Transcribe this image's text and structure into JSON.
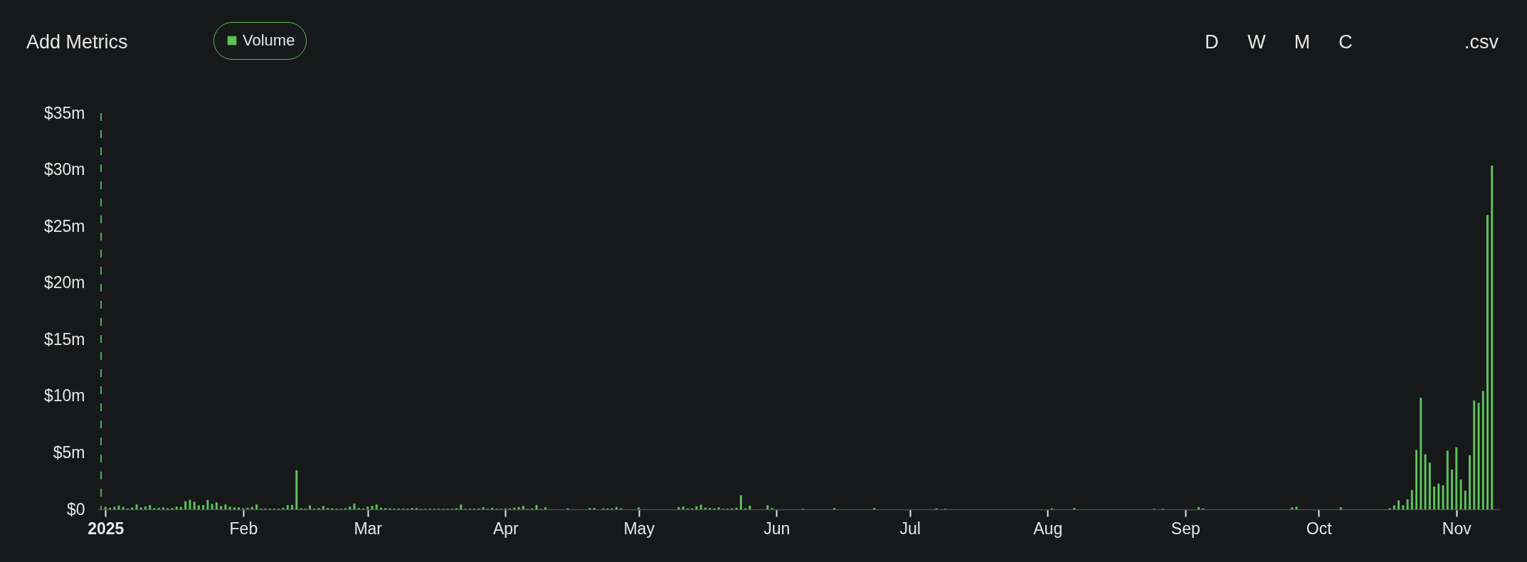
{
  "chart_data": {
    "type": "bar",
    "x": [
      "2025-01-01",
      "2025-01-02",
      "2025-01-03",
      "2025-01-04",
      "2025-01-05",
      "2025-01-06",
      "2025-01-07",
      "2025-01-08",
      "2025-01-09",
      "2025-01-10",
      "2025-01-11",
      "2025-01-12",
      "2025-01-13",
      "2025-01-14",
      "2025-01-15",
      "2025-01-16",
      "2025-01-17",
      "2025-01-18",
      "2025-01-19",
      "2025-01-20",
      "2025-01-21",
      "2025-01-22",
      "2025-01-23",
      "2025-01-24",
      "2025-01-25",
      "2025-01-26",
      "2025-01-27",
      "2025-01-28",
      "2025-01-29",
      "2025-01-30",
      "2025-01-31",
      "2025-02-01",
      "2025-02-02",
      "2025-02-03",
      "2025-02-04",
      "2025-02-05",
      "2025-02-06",
      "2025-02-07",
      "2025-02-08",
      "2025-02-09",
      "2025-02-10",
      "2025-02-11",
      "2025-02-12",
      "2025-02-13",
      "2025-02-14",
      "2025-02-15",
      "2025-02-16",
      "2025-02-17",
      "2025-02-18",
      "2025-02-19",
      "2025-02-20",
      "2025-02-21",
      "2025-02-22",
      "2025-02-23",
      "2025-02-24",
      "2025-02-25",
      "2025-02-26",
      "2025-02-27",
      "2025-02-28",
      "2025-03-01",
      "2025-03-02",
      "2025-03-03",
      "2025-03-04",
      "2025-03-05",
      "2025-03-06",
      "2025-03-07",
      "2025-03-08",
      "2025-03-09",
      "2025-03-10",
      "2025-03-11",
      "2025-03-12",
      "2025-03-13",
      "2025-03-14",
      "2025-03-15",
      "2025-03-16",
      "2025-03-17",
      "2025-03-18",
      "2025-03-19",
      "2025-03-20",
      "2025-03-21",
      "2025-03-22",
      "2025-03-23",
      "2025-03-24",
      "2025-03-25",
      "2025-03-26",
      "2025-03-27",
      "2025-03-28",
      "2025-03-29",
      "2025-03-30",
      "2025-03-31",
      "2025-04-01",
      "2025-04-02",
      "2025-04-03",
      "2025-04-04",
      "2025-04-05",
      "2025-04-06",
      "2025-04-07",
      "2025-04-08",
      "2025-04-09",
      "2025-04-10",
      "2025-04-15",
      "2025-04-20",
      "2025-04-21",
      "2025-04-23",
      "2025-04-24",
      "2025-04-25",
      "2025-04-26",
      "2025-04-27",
      "2025-05-01",
      "2025-05-10",
      "2025-05-11",
      "2025-05-12",
      "2025-05-13",
      "2025-05-14",
      "2025-05-15",
      "2025-05-16",
      "2025-05-17",
      "2025-05-18",
      "2025-05-19",
      "2025-05-20",
      "2025-05-21",
      "2025-05-22",
      "2025-05-23",
      "2025-05-24",
      "2025-05-25",
      "2025-05-26",
      "2025-05-30",
      "2025-05-31",
      "2025-06-07",
      "2025-06-14",
      "2025-06-23",
      "2025-07-07",
      "2025-07-09",
      "2025-08-02",
      "2025-08-07",
      "2025-08-25",
      "2025-08-27",
      "2025-09-04",
      "2025-09-05",
      "2025-09-25",
      "2025-09-26",
      "2025-10-06",
      "2025-10-17",
      "2025-10-18",
      "2025-10-19",
      "2025-10-20",
      "2025-10-21",
      "2025-10-22",
      "2025-10-23",
      "2025-10-24",
      "2025-10-25",
      "2025-10-26",
      "2025-10-27",
      "2025-10-28",
      "2025-10-29",
      "2025-10-30",
      "2025-10-31",
      "2025-11-01",
      "2025-11-02",
      "2025-11-03",
      "2025-11-04",
      "2025-11-05",
      "2025-11-06",
      "2025-11-07",
      "2025-11-08",
      "2025-11-09"
    ],
    "series": [
      {
        "name": "Volume",
        "color": "#5dc25a",
        "values": [
          0.22,
          0.14,
          0.22,
          0.34,
          0.22,
          0.07,
          0.17,
          0.43,
          0.17,
          0.26,
          0.38,
          0.12,
          0.14,
          0.17,
          0.1,
          0.12,
          0.24,
          0.22,
          0.72,
          0.84,
          0.67,
          0.36,
          0.38,
          0.82,
          0.48,
          0.62,
          0.29,
          0.43,
          0.24,
          0.17,
          0.17,
          0.1,
          0.14,
          0.22,
          0.43,
          0.07,
          0.07,
          0.07,
          0.07,
          0.07,
          0.14,
          0.38,
          0.38,
          3.46,
          0.1,
          0.07,
          0.34,
          0.07,
          0.12,
          0.29,
          0.12,
          0.1,
          0.07,
          0.07,
          0.1,
          0.24,
          0.5,
          0.12,
          0.07,
          0.24,
          0.31,
          0.43,
          0.14,
          0.12,
          0.1,
          0.07,
          0.07,
          0.07,
          0.07,
          0.12,
          0.12,
          0.05,
          0.05,
          0.05,
          0.05,
          0.05,
          0.05,
          0.05,
          0.05,
          0.1,
          0.43,
          0.05,
          0.05,
          0.07,
          0.07,
          0.19,
          0.05,
          0.14,
          0.05,
          0.05,
          0.09,
          0.09,
          0.15,
          0.2,
          0.3,
          0.05,
          0.09,
          0.38,
          0.05,
          0.18,
          0.09,
          0.12,
          0.12,
          0.09,
          0.09,
          0.09,
          0.2,
          0.09,
          0.18,
          0.2,
          0.24,
          0.09,
          0.09,
          0.27,
          0.41,
          0.15,
          0.12,
          0.09,
          0.18,
          0.06,
          0.06,
          0.09,
          0.15,
          1.24,
          0.09,
          0.33,
          0.36,
          0.12,
          0.05,
          0.12,
          0.12,
          0.09,
          0.06,
          0.09,
          0.12,
          0.05,
          0.05,
          0.2,
          0.09,
          0.18,
          0.24,
          0.19,
          0.1,
          0.36,
          0.79,
          0.36,
          0.89,
          1.71,
          5.24,
          9.86,
          4.86,
          4.13,
          2.02,
          2.28,
          2.12,
          5.19,
          3.51,
          5.48,
          2.64,
          1.66,
          4.78,
          9.62,
          9.42,
          10.46,
          26.0,
          30.36
        ]
      }
    ],
    "xlim": [
      "2024-12-31",
      "2025-11-10"
    ],
    "xticks": [
      {
        "value": "2025-01-01",
        "label": "2025"
      },
      {
        "value": "2025-02-01",
        "label": "Feb"
      },
      {
        "value": "2025-03-01",
        "label": "Mar"
      },
      {
        "value": "2025-04-01",
        "label": "Apr"
      },
      {
        "value": "2025-05-01",
        "label": "May"
      },
      {
        "value": "2025-06-01",
        "label": "Jun"
      },
      {
        "value": "2025-07-01",
        "label": "Jul"
      },
      {
        "value": "2025-08-01",
        "label": "Aug"
      },
      {
        "value": "2025-09-01",
        "label": "Sep"
      },
      {
        "value": "2025-10-01",
        "label": "Oct"
      },
      {
        "value": "2025-11-01",
        "label": "Nov"
      }
    ],
    "ylim": [
      0,
      35
    ],
    "yticks": [
      {
        "value": 0,
        "label": "$0"
      },
      {
        "value": 5,
        "label": "$5m"
      },
      {
        "value": 10,
        "label": "$10m"
      },
      {
        "value": 15,
        "label": "$15m"
      },
      {
        "value": 20,
        "label": "$20m"
      },
      {
        "value": 25,
        "label": "$25m"
      },
      {
        "value": 30,
        "label": "$30m"
      },
      {
        "value": 35,
        "label": "$35m"
      }
    ],
    "ref_lines": [
      {
        "axis": "x",
        "value": "2024-12-31",
        "color": "#4fae4f",
        "line_style": "dashed"
      }
    ],
    "legend": "top left",
    "annotations": [
      "Add Metrics",
      "D",
      "W",
      "M",
      "C",
      ".csv"
    ]
  }
}
